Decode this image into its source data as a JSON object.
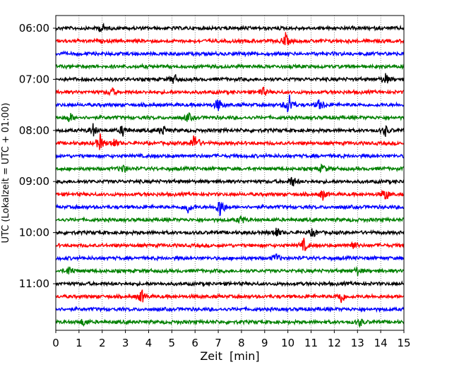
{
  "chart_data": {
    "type": "line",
    "xlabel": "Zeit  [min]",
    "ylabel": "UTC (Lokalzeit = UTC + 01:00)",
    "xlim": [
      0,
      15
    ],
    "x_ticks": [
      "0",
      "1",
      "2",
      "3",
      "4",
      "5",
      "6",
      "7",
      "8",
      "9",
      "10",
      "11",
      "12",
      "13",
      "14",
      "15"
    ],
    "y_tick_labels": [
      "06:00",
      "07:00",
      "08:00",
      "09:00",
      "10:00",
      "11:00"
    ],
    "grid": "vertical dotted at each minute",
    "trace_colors": [
      "#000000",
      "#ff0000",
      "#0000ff",
      "#008000"
    ],
    "traces": [
      {
        "start": "06:00",
        "events": [
          [
            2.0,
            0.35
          ]
        ]
      },
      {
        "start": "06:15",
        "events": [
          [
            9.9,
            0.55
          ]
        ]
      },
      {
        "start": "06:30",
        "events": []
      },
      {
        "start": "06:45",
        "events": []
      },
      {
        "start": "07:00",
        "events": [
          [
            5.1,
            0.45
          ],
          [
            14.2,
            0.45
          ]
        ]
      },
      {
        "start": "07:15",
        "events": [
          [
            2.4,
            0.35
          ],
          [
            8.9,
            0.4
          ]
        ]
      },
      {
        "start": "07:30",
        "events": [
          [
            10.05,
            1.0
          ],
          [
            7.0,
            0.55
          ],
          [
            11.4,
            0.5
          ]
        ]
      },
      {
        "start": "07:45",
        "events": [
          [
            0.6,
            0.4
          ],
          [
            5.7,
            0.35
          ]
        ]
      },
      {
        "start": "08:00",
        "events": [
          [
            1.6,
            0.5
          ],
          [
            2.9,
            0.45
          ],
          [
            4.6,
            0.4
          ],
          [
            14.2,
            0.4
          ]
        ]
      },
      {
        "start": "08:15",
        "events": [
          [
            1.9,
            0.7
          ],
          [
            6.0,
            0.9
          ],
          [
            2.5,
            0.4
          ]
        ]
      },
      {
        "start": "08:30",
        "events": []
      },
      {
        "start": "08:45",
        "events": [
          [
            2.9,
            0.35
          ],
          [
            11.5,
            0.35
          ]
        ]
      },
      {
        "start": "09:00",
        "events": [
          [
            10.2,
            0.45
          ]
        ]
      },
      {
        "start": "09:15",
        "events": [
          [
            11.5,
            0.4
          ],
          [
            14.2,
            0.55
          ]
        ]
      },
      {
        "start": "09:30",
        "events": [
          [
            5.7,
            0.45
          ],
          [
            7.1,
            0.95
          ]
        ]
      },
      {
        "start": "09:45",
        "events": [
          [
            8.0,
            0.35
          ]
        ]
      },
      {
        "start": "10:00",
        "events": [
          [
            9.5,
            0.45
          ],
          [
            11.1,
            0.35
          ]
        ]
      },
      {
        "start": "10:15",
        "events": [
          [
            10.7,
            0.5
          ],
          [
            12.8,
            0.35
          ]
        ]
      },
      {
        "start": "10:30",
        "events": [
          [
            9.5,
            0.35
          ]
        ]
      },
      {
        "start": "10:45",
        "events": [
          [
            0.6,
            0.4
          ],
          [
            13.0,
            0.3
          ]
        ]
      },
      {
        "start": "11:00",
        "events": []
      },
      {
        "start": "11:15",
        "events": [
          [
            3.7,
            0.55
          ],
          [
            12.3,
            0.55
          ]
        ]
      },
      {
        "start": "11:30",
        "events": []
      },
      {
        "start": "11:45",
        "events": [
          [
            1.2,
            0.3
          ],
          [
            13.1,
            0.3
          ]
        ]
      }
    ]
  }
}
